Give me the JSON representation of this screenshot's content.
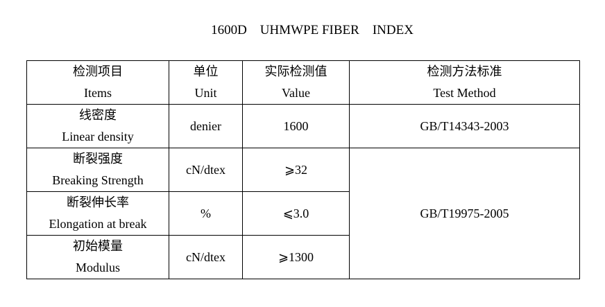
{
  "title": "1600D    UHMWPE FIBER    INDEX",
  "header": {
    "items": {
      "zh": "检测项目",
      "en": "Items"
    },
    "unit": {
      "zh": "单位",
      "en": "Unit"
    },
    "value": {
      "zh": "实际检测值",
      "en": "Value"
    },
    "method": {
      "zh": "检测方法标准",
      "en": "Test Method"
    }
  },
  "rows": [
    {
      "zh": "线密度",
      "en": "Linear density",
      "unit": "denier",
      "value": "1600",
      "method": "GB/T14343-2003"
    },
    {
      "zh": "断裂强度",
      "en": "Breaking Strength",
      "unit": "cN/dtex",
      "value": "⩾32",
      "method": "GB/T19975-2005"
    },
    {
      "zh": "断裂伸长率",
      "en": "Elongation at break",
      "unit": "%",
      "value": "⩽3.0"
    },
    {
      "zh": "初始模量",
      "en": "Modulus",
      "unit": "cN/dtex",
      "value": "⩾1300"
    }
  ]
}
